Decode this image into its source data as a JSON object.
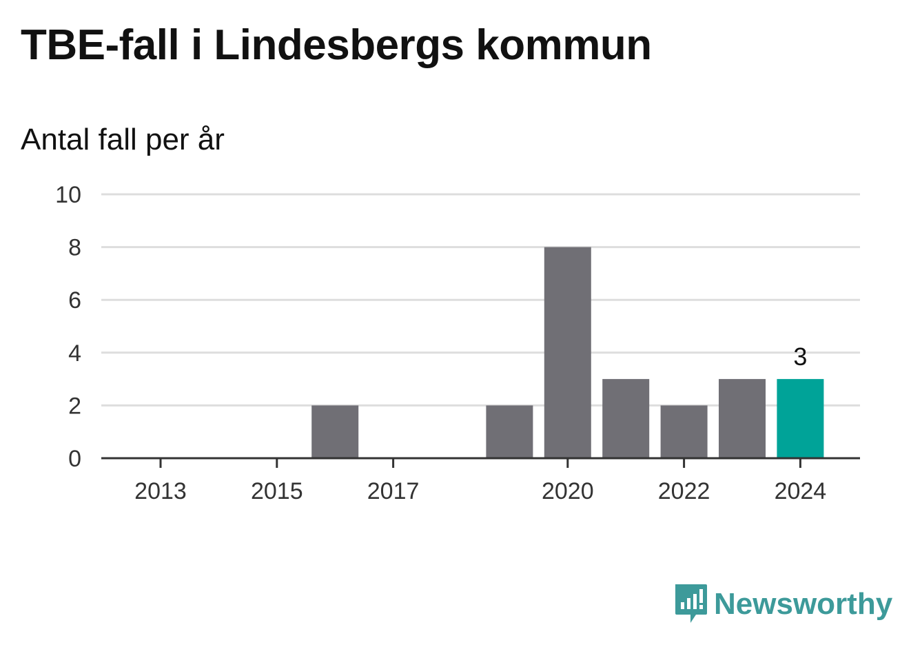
{
  "header": {
    "title": "TBE-fall i Lindesbergs kommun",
    "subtitle": "Antal fall per år"
  },
  "brand": {
    "name": "Newsworthy",
    "icon": "newsworthy-logo-icon",
    "color": "#3d9a9a"
  },
  "chart_data": {
    "type": "bar",
    "categories": [
      "2013",
      "2014",
      "2015",
      "2016",
      "2017",
      "2018",
      "2019",
      "2020",
      "2021",
      "2022",
      "2023",
      "2024"
    ],
    "values": [
      0,
      0,
      0,
      2,
      0,
      0,
      2,
      8,
      3,
      2,
      3,
      3
    ],
    "x_tick_labels": [
      "2013",
      "2015",
      "2017",
      "2020",
      "2022",
      "2024"
    ],
    "y_ticks": [
      0,
      2,
      4,
      6,
      8,
      10
    ],
    "ylim": [
      0,
      10
    ],
    "xlabel": "",
    "ylabel": "",
    "grid": true,
    "highlight": {
      "category": "2024",
      "value_label": "3"
    },
    "colors": {
      "bar": "#706f75",
      "highlight": "#00a398",
      "grid": "#dddddd",
      "axis": "#333333"
    }
  }
}
